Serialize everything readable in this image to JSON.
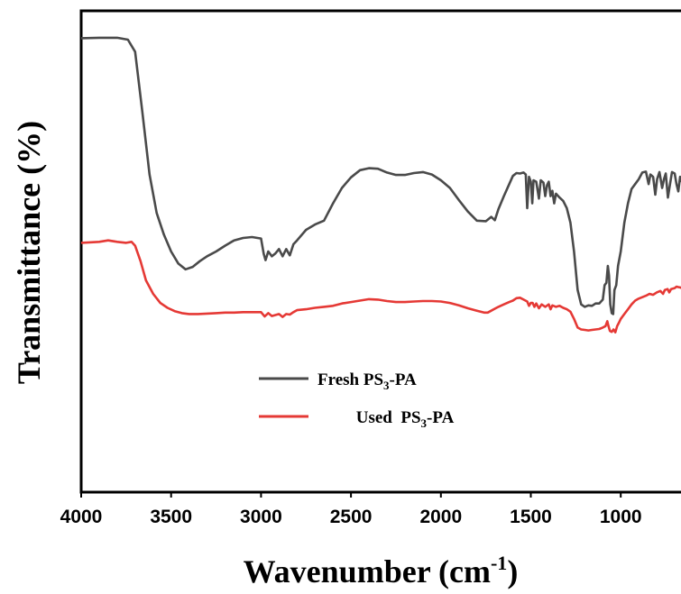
{
  "chart_data": {
    "type": "line",
    "xlabel": {
      "text": "Wavenumber (cm",
      "sup": "-1",
      "close": ")"
    },
    "ylabel": "Transmittance (%)",
    "xlim": [
      4000,
      650
    ],
    "ylim": [
      0,
      1
    ],
    "x_ticks": [
      4000,
      3500,
      3000,
      2500,
      2000,
      1500,
      1000
    ],
    "x_tick_labels": [
      "4000",
      "3500",
      "3000",
      "2500",
      "2000",
      "1500",
      "1000"
    ],
    "y_ticks_shown": false,
    "grid": false,
    "legend": {
      "placement": "middle-center",
      "entries": [
        {
          "prefix": "Fresh PS",
          "sub": "3",
          "suffix": "-PA"
        },
        {
          "prefix": "Used  PS",
          "sub": "3",
          "suffix": "-PA"
        }
      ]
    },
    "series": [
      {
        "color": "#4a4a4a",
        "points": [
          [
            4000,
            0.943
          ],
          [
            3900,
            0.944
          ],
          [
            3800,
            0.944
          ],
          [
            3740,
            0.94
          ],
          [
            3700,
            0.915
          ],
          [
            3660,
            0.79
          ],
          [
            3620,
            0.66
          ],
          [
            3580,
            0.58
          ],
          [
            3540,
            0.535
          ],
          [
            3500,
            0.5
          ],
          [
            3460,
            0.475
          ],
          [
            3420,
            0.463
          ],
          [
            3380,
            0.468
          ],
          [
            3340,
            0.48
          ],
          [
            3300,
            0.49
          ],
          [
            3250,
            0.5
          ],
          [
            3200,
            0.512
          ],
          [
            3150,
            0.523
          ],
          [
            3100,
            0.528
          ],
          [
            3050,
            0.53
          ],
          [
            3000,
            0.527
          ],
          [
            2985,
            0.495
          ],
          [
            2975,
            0.482
          ],
          [
            2960,
            0.5
          ],
          [
            2940,
            0.49
          ],
          [
            2920,
            0.496
          ],
          [
            2900,
            0.505
          ],
          [
            2880,
            0.49
          ],
          [
            2860,
            0.505
          ],
          [
            2840,
            0.492
          ],
          [
            2820,
            0.515
          ],
          [
            2800,
            0.523
          ],
          [
            2750,
            0.545
          ],
          [
            2700,
            0.556
          ],
          [
            2650,
            0.564
          ],
          [
            2600,
            0.6
          ],
          [
            2550,
            0.632
          ],
          [
            2500,
            0.654
          ],
          [
            2450,
            0.669
          ],
          [
            2400,
            0.673
          ],
          [
            2350,
            0.672
          ],
          [
            2300,
            0.664
          ],
          [
            2250,
            0.659
          ],
          [
            2200,
            0.659
          ],
          [
            2150,
            0.663
          ],
          [
            2100,
            0.665
          ],
          [
            2050,
            0.66
          ],
          [
            2000,
            0.648
          ],
          [
            1950,
            0.632
          ],
          [
            1900,
            0.607
          ],
          [
            1850,
            0.583
          ],
          [
            1800,
            0.564
          ],
          [
            1750,
            0.563
          ],
          [
            1720,
            0.572
          ],
          [
            1700,
            0.565
          ],
          [
            1680,
            0.588
          ],
          [
            1650,
            0.615
          ],
          [
            1620,
            0.64
          ],
          [
            1600,
            0.657
          ],
          [
            1580,
            0.663
          ],
          [
            1560,
            0.662
          ],
          [
            1540,
            0.664
          ],
          [
            1528,
            0.66
          ],
          [
            1520,
            0.59
          ],
          [
            1510,
            0.655
          ],
          [
            1500,
            0.645
          ],
          [
            1492,
            0.6
          ],
          [
            1485,
            0.648
          ],
          [
            1470,
            0.645
          ],
          [
            1455,
            0.61
          ],
          [
            1445,
            0.648
          ],
          [
            1430,
            0.643
          ],
          [
            1420,
            0.615
          ],
          [
            1410,
            0.638
          ],
          [
            1400,
            0.645
          ],
          [
            1390,
            0.615
          ],
          [
            1380,
            0.626
          ],
          [
            1370,
            0.6
          ],
          [
            1360,
            0.62
          ],
          [
            1340,
            0.612
          ],
          [
            1320,
            0.605
          ],
          [
            1300,
            0.59
          ],
          [
            1280,
            0.56
          ],
          [
            1260,
            0.5
          ],
          [
            1240,
            0.42
          ],
          [
            1220,
            0.39
          ],
          [
            1200,
            0.385
          ],
          [
            1180,
            0.388
          ],
          [
            1160,
            0.387
          ],
          [
            1140,
            0.392
          ],
          [
            1120,
            0.392
          ],
          [
            1100,
            0.4
          ],
          [
            1090,
            0.43
          ],
          [
            1080,
            0.435
          ],
          [
            1072,
            0.47
          ],
          [
            1065,
            0.45
          ],
          [
            1058,
            0.39
          ],
          [
            1050,
            0.372
          ],
          [
            1042,
            0.37
          ],
          [
            1035,
            0.42
          ],
          [
            1025,
            0.43
          ],
          [
            1015,
            0.47
          ],
          [
            1000,
            0.5
          ],
          [
            980,
            0.56
          ],
          [
            960,
            0.6
          ],
          [
            940,
            0.63
          ],
          [
            920,
            0.64
          ],
          [
            900,
            0.65
          ],
          [
            880,
            0.664
          ],
          [
            860,
            0.666
          ],
          [
            845,
            0.64
          ],
          [
            835,
            0.66
          ],
          [
            820,
            0.655
          ],
          [
            808,
            0.618
          ],
          [
            798,
            0.65
          ],
          [
            785,
            0.665
          ],
          [
            770,
            0.632
          ],
          [
            760,
            0.65
          ],
          [
            750,
            0.662
          ],
          [
            738,
            0.612
          ],
          [
            728,
            0.635
          ],
          [
            715,
            0.665
          ],
          [
            700,
            0.662
          ],
          [
            690,
            0.64
          ],
          [
            680,
            0.625
          ],
          [
            670,
            0.655
          ],
          [
            660,
            0.645
          ],
          [
            650,
            0.645
          ]
        ]
      },
      {
        "color": "#e53935",
        "points": [
          [
            4000,
            0.518
          ],
          [
            3900,
            0.52
          ],
          [
            3850,
            0.523
          ],
          [
            3800,
            0.52
          ],
          [
            3750,
            0.518
          ],
          [
            3720,
            0.52
          ],
          [
            3700,
            0.512
          ],
          [
            3670,
            0.48
          ],
          [
            3640,
            0.44
          ],
          [
            3600,
            0.412
          ],
          [
            3560,
            0.393
          ],
          [
            3520,
            0.383
          ],
          [
            3480,
            0.376
          ],
          [
            3440,
            0.372
          ],
          [
            3400,
            0.37
          ],
          [
            3350,
            0.37
          ],
          [
            3300,
            0.371
          ],
          [
            3250,
            0.372
          ],
          [
            3200,
            0.373
          ],
          [
            3150,
            0.373
          ],
          [
            3100,
            0.374
          ],
          [
            3050,
            0.374
          ],
          [
            3000,
            0.374
          ],
          [
            2980,
            0.365
          ],
          [
            2960,
            0.372
          ],
          [
            2940,
            0.366
          ],
          [
            2900,
            0.37
          ],
          [
            2880,
            0.364
          ],
          [
            2860,
            0.37
          ],
          [
            2840,
            0.369
          ],
          [
            2820,
            0.374
          ],
          [
            2800,
            0.378
          ],
          [
            2750,
            0.38
          ],
          [
            2700,
            0.383
          ],
          [
            2650,
            0.385
          ],
          [
            2600,
            0.387
          ],
          [
            2550,
            0.392
          ],
          [
            2500,
            0.395
          ],
          [
            2450,
            0.398
          ],
          [
            2400,
            0.401
          ],
          [
            2350,
            0.4
          ],
          [
            2300,
            0.397
          ],
          [
            2250,
            0.395
          ],
          [
            2200,
            0.395
          ],
          [
            2150,
            0.396
          ],
          [
            2100,
            0.397
          ],
          [
            2050,
            0.397
          ],
          [
            2000,
            0.396
          ],
          [
            1950,
            0.393
          ],
          [
            1900,
            0.388
          ],
          [
            1850,
            0.382
          ],
          [
            1800,
            0.377
          ],
          [
            1760,
            0.373
          ],
          [
            1740,
            0.373
          ],
          [
            1720,
            0.377
          ],
          [
            1700,
            0.381
          ],
          [
            1680,
            0.385
          ],
          [
            1650,
            0.39
          ],
          [
            1620,
            0.395
          ],
          [
            1600,
            0.398
          ],
          [
            1580,
            0.403
          ],
          [
            1560,
            0.404
          ],
          [
            1540,
            0.4
          ],
          [
            1520,
            0.396
          ],
          [
            1510,
            0.387
          ],
          [
            1500,
            0.393
          ],
          [
            1490,
            0.393
          ],
          [
            1480,
            0.385
          ],
          [
            1470,
            0.392
          ],
          [
            1455,
            0.382
          ],
          [
            1440,
            0.39
          ],
          [
            1420,
            0.385
          ],
          [
            1400,
            0.39
          ],
          [
            1390,
            0.38
          ],
          [
            1380,
            0.388
          ],
          [
            1360,
            0.385
          ],
          [
            1340,
            0.387
          ],
          [
            1320,
            0.383
          ],
          [
            1300,
            0.38
          ],
          [
            1280,
            0.375
          ],
          [
            1260,
            0.36
          ],
          [
            1240,
            0.342
          ],
          [
            1220,
            0.338
          ],
          [
            1200,
            0.337
          ],
          [
            1180,
            0.336
          ],
          [
            1160,
            0.337
          ],
          [
            1140,
            0.338
          ],
          [
            1120,
            0.339
          ],
          [
            1100,
            0.342
          ],
          [
            1085,
            0.345
          ],
          [
            1075,
            0.355
          ],
          [
            1068,
            0.345
          ],
          [
            1060,
            0.335
          ],
          [
            1050,
            0.333
          ],
          [
            1040,
            0.338
          ],
          [
            1030,
            0.332
          ],
          [
            1020,
            0.345
          ],
          [
            1010,
            0.352
          ],
          [
            1000,
            0.36
          ],
          [
            980,
            0.37
          ],
          [
            960,
            0.38
          ],
          [
            940,
            0.39
          ],
          [
            920,
            0.398
          ],
          [
            900,
            0.402
          ],
          [
            880,
            0.405
          ],
          [
            860,
            0.408
          ],
          [
            840,
            0.412
          ],
          [
            820,
            0.41
          ],
          [
            800,
            0.415
          ],
          [
            780,
            0.418
          ],
          [
            765,
            0.412
          ],
          [
            755,
            0.42
          ],
          [
            740,
            0.422
          ],
          [
            730,
            0.415
          ],
          [
            720,
            0.422
          ],
          [
            700,
            0.424
          ],
          [
            690,
            0.427
          ],
          [
            680,
            0.426
          ],
          [
            665,
            0.425
          ],
          [
            650,
            0.42
          ]
        ]
      }
    ]
  }
}
